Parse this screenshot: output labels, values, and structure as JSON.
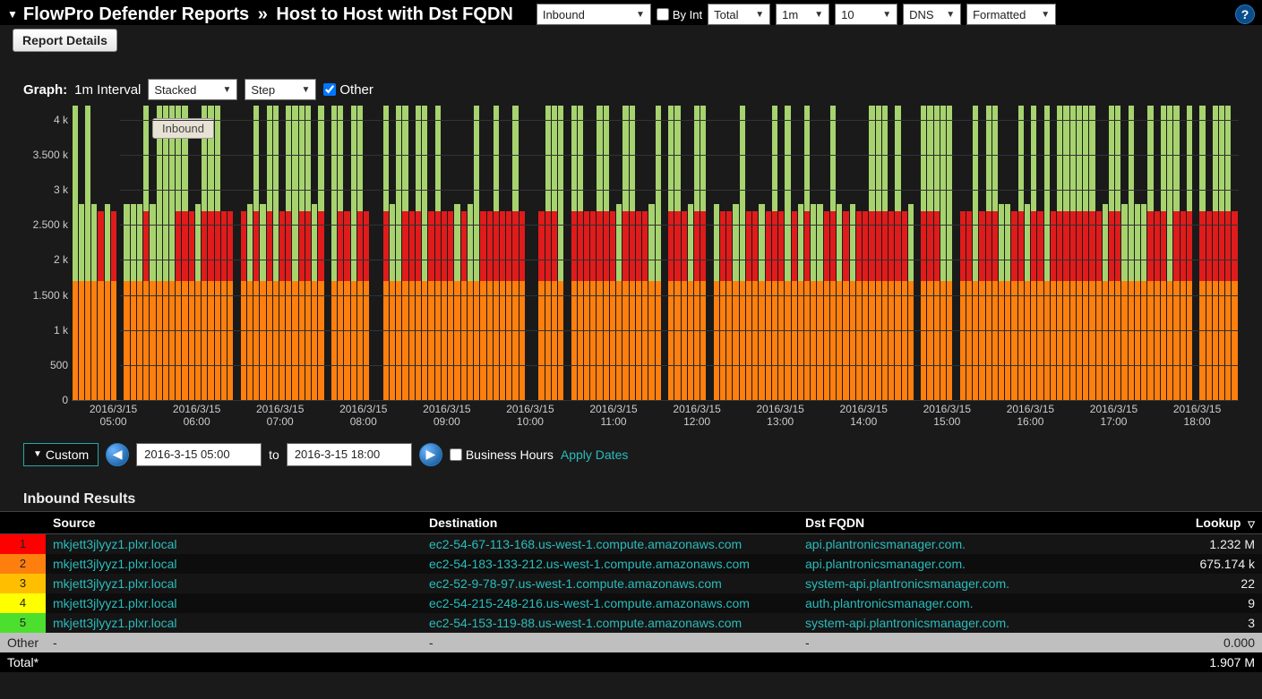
{
  "header": {
    "title_main": "FlowPro Defender Reports",
    "title_sub": "Host to Host with Dst FQDN",
    "direction": "Inbound",
    "by_int_label": "By Int",
    "total": "Total",
    "interval": "1m",
    "count": "10",
    "dns": "DNS",
    "formatted": "Formatted",
    "report_details": "Report Details"
  },
  "graph_controls": {
    "label": "Graph:",
    "interval_text": "1m Interval",
    "stacked": "Stacked",
    "step": "Step",
    "other_label": "Other"
  },
  "legend": {
    "pill": "Inbound"
  },
  "chart": {
    "ymax": 4200,
    "yticks": [
      {
        "v": 4000,
        "label": "4 k"
      },
      {
        "v": 3500,
        "label": "3.500 k"
      },
      {
        "v": 3000,
        "label": "3 k"
      },
      {
        "v": 2500,
        "label": "2.500 k"
      },
      {
        "v": 2000,
        "label": "2 k"
      },
      {
        "v": 1500,
        "label": "1.500 k"
      },
      {
        "v": 1000,
        "label": "1 k"
      },
      {
        "v": 500,
        "label": "500"
      },
      {
        "v": 0,
        "label": "0"
      }
    ],
    "xticks": [
      "2016/3/15\n05:00",
      "2016/3/15\n06:00",
      "2016/3/15\n07:00",
      "2016/3/15\n08:00",
      "2016/3/15\n09:00",
      "2016/3/15\n10:00",
      "2016/3/15\n11:00",
      "2016/3/15\n12:00",
      "2016/3/15\n13:00",
      "2016/3/15\n14:00",
      "2016/3/15\n15:00",
      "2016/3/15\n16:00",
      "2016/3/15\n17:00",
      "2016/3/15\n18:00"
    ],
    "colors": {
      "orange": "#ff7f0e",
      "red": "#e01b1b",
      "green": "#a7d36f",
      "grid": "#333333",
      "bg": "#1a1a1a"
    },
    "pattern_seed": 42,
    "bar_count": 180,
    "series_heights": {
      "orange": 1700,
      "red_top": 2700,
      "green_top_low": 2800,
      "green_top_high": 4200
    }
  },
  "dates": {
    "custom_label": "Custom",
    "from": "2016-3-15 05:00",
    "to_label": "to",
    "to": "2016-3-15 18:00",
    "business_hours_label": "Business Hours",
    "apply_label": "Apply Dates"
  },
  "results": {
    "title": "Inbound Results",
    "columns": {
      "source": "Source",
      "destination": "Destination",
      "fqdn": "Dst FQDN",
      "lookup": "Lookup"
    },
    "rows": [
      {
        "n": "1",
        "color": "#ff0000",
        "source": "mkjett3jlyyz1.plxr.local",
        "dest": "ec2-54-67-113-168.us-west-1.compute.amazonaws.com",
        "fqdn": "api.plantronicsmanager.com.",
        "lookup": "1.232 M"
      },
      {
        "n": "2",
        "color": "#ff7f0e",
        "source": "mkjett3jlyyz1.plxr.local",
        "dest": "ec2-54-183-133-212.us-west-1.compute.amazonaws.com",
        "fqdn": "api.plantronicsmanager.com.",
        "lookup": "675.174 k"
      },
      {
        "n": "3",
        "color": "#ffbf00",
        "source": "mkjett3jlyyz1.plxr.local",
        "dest": "ec2-52-9-78-97.us-west-1.compute.amazonaws.com",
        "fqdn": "system-api.plantronicsmanager.com.",
        "lookup": "22"
      },
      {
        "n": "4",
        "color": "#ffff00",
        "source": "mkjett3jlyyz1.plxr.local",
        "dest": "ec2-54-215-248-216.us-west-1.compute.amazonaws.com",
        "fqdn": "auth.plantronicsmanager.com.",
        "lookup": "9"
      },
      {
        "n": "5",
        "color": "#4cdf2e",
        "source": "mkjett3jlyyz1.plxr.local",
        "dest": "ec2-54-153-119-88.us-west-1.compute.amazonaws.com",
        "fqdn": "system-api.plantronicsmanager.com.",
        "lookup": "3"
      }
    ],
    "other": {
      "label": "Other",
      "dash": "-",
      "lookup": "0.000"
    },
    "total": {
      "label": "Total*",
      "lookup": "1.907 M"
    }
  }
}
